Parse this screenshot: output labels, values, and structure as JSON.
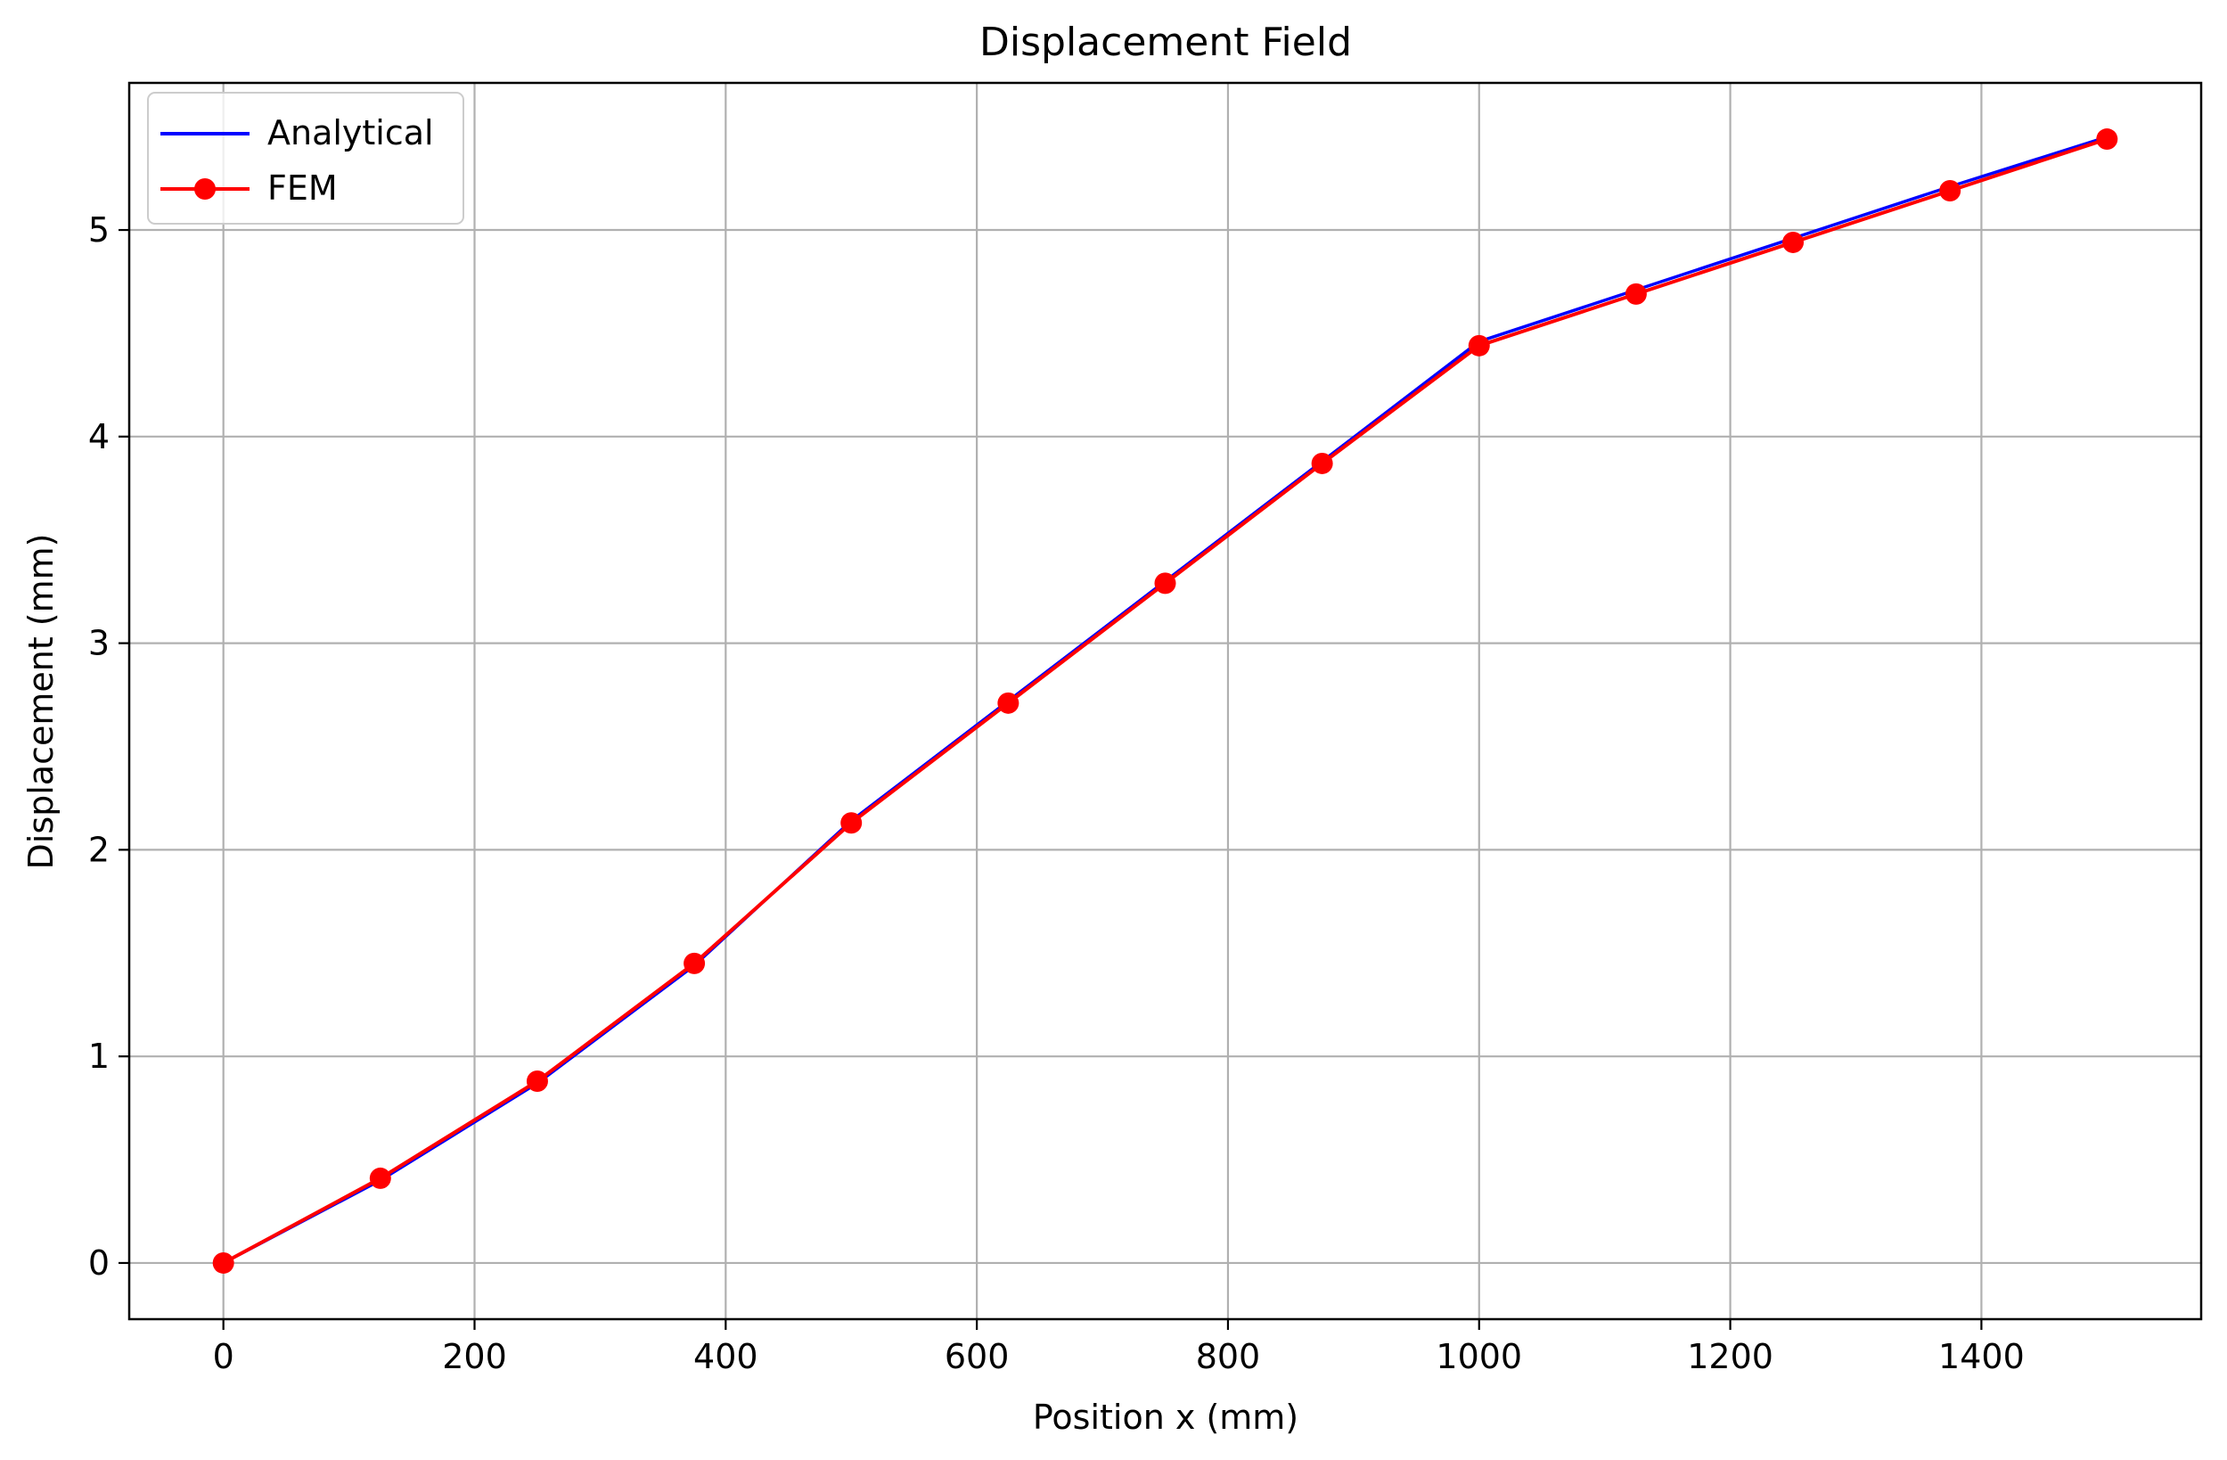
{
  "chart_data": {
    "type": "line",
    "title": "Displacement Field",
    "xlabel": "Position x (mm)",
    "ylabel": "Displacement (mm)",
    "xlim": [
      -75,
      1575
    ],
    "ylim": [
      -0.272,
      5.712
    ],
    "grid": true,
    "legend_position": "top-left",
    "x_ticks": [
      0,
      200,
      400,
      600,
      800,
      1000,
      1200,
      1400
    ],
    "y_ticks": [
      0,
      1,
      2,
      3,
      4,
      5
    ],
    "series": [
      {
        "name": "Analytical",
        "color": "#0000ff",
        "marker": "none",
        "x": [
          0,
          125,
          250,
          375,
          500,
          625,
          750,
          875,
          1000,
          1125,
          1250,
          1375,
          1500
        ],
        "y": [
          0.0,
          0.4,
          0.87,
          1.44,
          2.14,
          2.72,
          3.3,
          3.88,
          4.46,
          4.71,
          4.96,
          5.21,
          5.45
        ]
      },
      {
        "name": "FEM",
        "color": "#ff0000",
        "marker": "circle",
        "x": [
          0,
          125,
          250,
          375,
          500,
          625,
          750,
          875,
          1000,
          1125,
          1250,
          1375,
          1500
        ],
        "y": [
          0.0,
          0.41,
          0.88,
          1.45,
          2.13,
          2.71,
          3.29,
          3.87,
          4.44,
          4.69,
          4.94,
          5.19,
          5.44
        ]
      }
    ]
  }
}
